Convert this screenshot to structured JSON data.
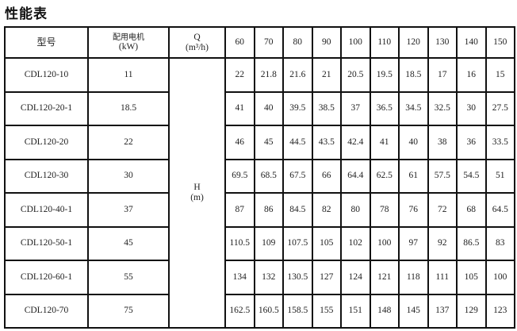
{
  "title": "性能表",
  "table": {
    "header": {
      "model": "型号",
      "motor_line1": "配用电机",
      "motor_line2": "(kW)",
      "q_line1": "Q",
      "q_line2": "(m³/h)",
      "h_line1": "H",
      "h_line2": "(m)",
      "flows": [
        "60",
        "70",
        "80",
        "90",
        "100",
        "110",
        "120",
        "130",
        "140",
        "150"
      ]
    },
    "rows": [
      {
        "model": "CDL120-10",
        "power": "11",
        "heads": [
          "22",
          "21.8",
          "21.6",
          "21",
          "20.5",
          "19.5",
          "18.5",
          "17",
          "16",
          "15"
        ]
      },
      {
        "model": "CDL120-20-1",
        "power": "18.5",
        "heads": [
          "41",
          "40",
          "39.5",
          "38.5",
          "37",
          "36.5",
          "34.5",
          "32.5",
          "30",
          "27.5"
        ]
      },
      {
        "model": "CDL120-20",
        "power": "22",
        "heads": [
          "46",
          "45",
          "44.5",
          "43.5",
          "42.4",
          "41",
          "40",
          "38",
          "36",
          "33.5"
        ]
      },
      {
        "model": "CDL120-30",
        "power": "30",
        "heads": [
          "69.5",
          "68.5",
          "67.5",
          "66",
          "64.4",
          "62.5",
          "61",
          "57.5",
          "54.5",
          "51"
        ]
      },
      {
        "model": "CDL120-40-1",
        "power": "37",
        "heads": [
          "87",
          "86",
          "84.5",
          "82",
          "80",
          "78",
          "76",
          "72",
          "68",
          "64.5"
        ]
      },
      {
        "model": "CDL120-50-1",
        "power": "45",
        "heads": [
          "110.5",
          "109",
          "107.5",
          "105",
          "102",
          "100",
          "97",
          "92",
          "86.5",
          "83"
        ]
      },
      {
        "model": "CDL120-60-1",
        "power": "55",
        "heads": [
          "134",
          "132",
          "130.5",
          "127",
          "124",
          "121",
          "118",
          "111",
          "105",
          "100"
        ]
      },
      {
        "model": "CDL120-70",
        "power": "75",
        "heads": [
          "162.5",
          "160.5",
          "158.5",
          "155",
          "151",
          "148",
          "145",
          "137",
          "129",
          "123"
        ]
      }
    ]
  }
}
